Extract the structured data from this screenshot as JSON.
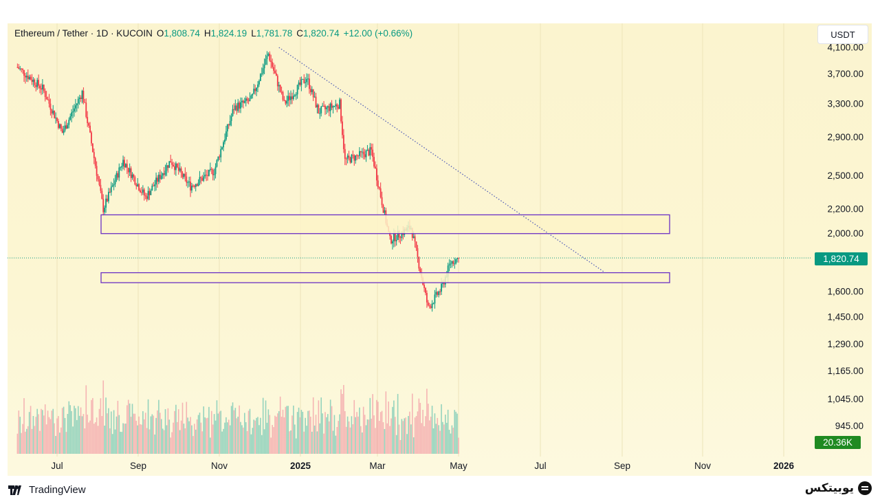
{
  "header": {
    "symbol": "Ethereum / Tether · 1D · KUCOIN",
    "open_label": "O",
    "open_value": "1,808.74",
    "high_label": "H",
    "high_value": "1,824.19",
    "low_label": "L",
    "low_value": "1,781.78",
    "close_label": "C",
    "close_value": "1,820.74",
    "change": "+12.00 (+0.66%)"
  },
  "currency_button": "USDT",
  "last_price_badge": "1,820.74",
  "volume_badge": "20.36K",
  "footer": {
    "tradingview": "TradingView",
    "exchange": "یوبیتکس"
  },
  "colors": {
    "up": "#089981",
    "down": "#f23645",
    "zone_border": "#6a2fc4",
    "trendline": "#5560b8",
    "background": "#fcf6d3"
  },
  "chart_data": {
    "type": "candlestick",
    "title": "Ethereum / Tether · 1D · KUCOIN",
    "y_scale": "log",
    "price_ticks": [
      "4,100.00",
      "3,700.00",
      "3,300.00",
      "2,900.00",
      "2,500.00",
      "2,200.00",
      "2,000.00",
      "1,600.00",
      "1,450.00"
    ],
    "volume_tick_labels": [
      "1,290.00",
      "1,165.00",
      "1,045.00",
      "945.00"
    ],
    "x_tick_labels": [
      "Jul",
      "Sep",
      "Nov",
      "2025",
      "Mar",
      "May",
      "Jul",
      "Sep",
      "Nov",
      "2026"
    ],
    "approx_price_path": [
      {
        "date": "2024-06-01",
        "price": 3800
      },
      {
        "date": "2024-06-20",
        "price": 3500
      },
      {
        "date": "2024-07-05",
        "price": 2950
      },
      {
        "date": "2024-07-20",
        "price": 3450
      },
      {
        "date": "2024-08-05",
        "price": 2200
      },
      {
        "date": "2024-08-20",
        "price": 2650
      },
      {
        "date": "2024-09-06",
        "price": 2300
      },
      {
        "date": "2024-09-25",
        "price": 2650
      },
      {
        "date": "2024-10-10",
        "price": 2400
      },
      {
        "date": "2024-10-28",
        "price": 2550
      },
      {
        "date": "2024-11-12",
        "price": 3250
      },
      {
        "date": "2024-11-25",
        "price": 3350
      },
      {
        "date": "2024-12-08",
        "price": 4000
      },
      {
        "date": "2024-12-20",
        "price": 3300
      },
      {
        "date": "2025-01-06",
        "price": 3650
      },
      {
        "date": "2025-01-15",
        "price": 3200
      },
      {
        "date": "2025-01-31",
        "price": 3300
      },
      {
        "date": "2025-02-04",
        "price": 2650
      },
      {
        "date": "2025-02-24",
        "price": 2750
      },
      {
        "date": "2025-03-10",
        "price": 1950
      },
      {
        "date": "2025-03-26",
        "price": 2050
      },
      {
        "date": "2025-04-08",
        "price": 1500
      },
      {
        "date": "2025-04-18",
        "price": 1620
      },
      {
        "date": "2025-04-25",
        "price": 1790
      },
      {
        "date": "2025-05-01",
        "price": 1820.74
      }
    ],
    "support_zones": [
      {
        "from": 2000,
        "to": 2150
      },
      {
        "from": 1655,
        "to": 1720
      }
    ],
    "trendline": {
      "start": {
        "date": "2024-12-16",
        "price": 4100
      },
      "end": {
        "date": "2025-08-20",
        "price": 1720
      }
    },
    "last_price": 1820.74,
    "last_volume": "20.36K"
  }
}
